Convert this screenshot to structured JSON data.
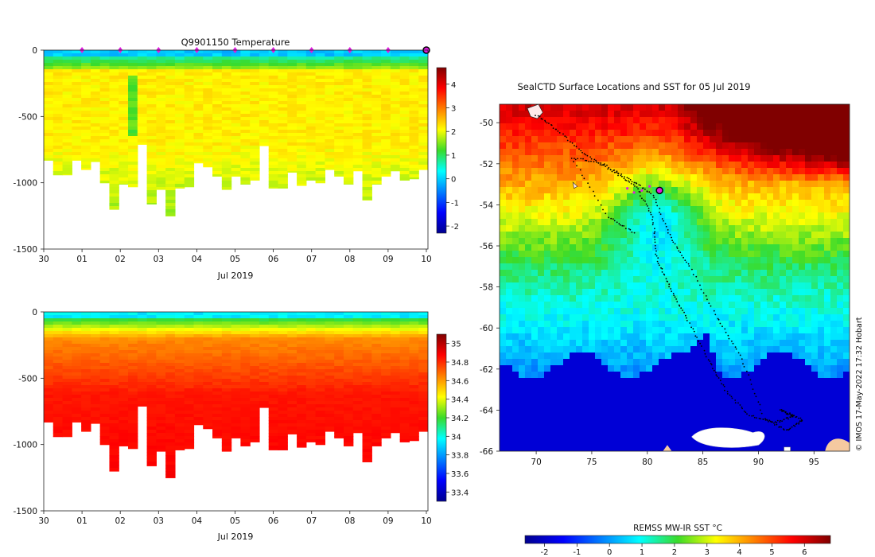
{
  "chart_data": [
    {
      "type": "heatmap",
      "title": "Q9901150  Temperature",
      "xlabel": "Jul 2019",
      "ylabel": "",
      "x_ticks": [
        "30",
        "01",
        "02",
        "03",
        "04",
        "05",
        "06",
        "07",
        "08",
        "09",
        "10"
      ],
      "y_ticks": [
        "0",
        "-500",
        "-1000",
        "-1500"
      ],
      "ylim": [
        -1500,
        0
      ],
      "colorbar_ticks": [
        "4",
        "3",
        "2",
        "1",
        "0",
        "-1",
        "-2"
      ],
      "colorbar_range": [
        -2.3,
        4.7
      ],
      "surface_profile_markers": 10,
      "profile_depths": [
        -830,
        -940,
        -940,
        -830,
        -900,
        -840,
        -1000,
        -1200,
        -1010,
        -1030,
        -710,
        -1160,
        -1050,
        -1250,
        -1040,
        -1030,
        -850,
        -880,
        -950,
        -1050,
        -950,
        -1010,
        -980,
        -720,
        -1040,
        -1040,
        -920,
        -1020,
        -980,
        -1000,
        -900,
        -950,
        -1010,
        -910,
        -1130,
        -1010,
        -950,
        -910,
        -980,
        -970,
        -900
      ]
    },
    {
      "type": "heatmap",
      "title": "",
      "xlabel": "Jul 2019",
      "ylabel": "",
      "x_ticks": [
        "30",
        "01",
        "02",
        "03",
        "04",
        "05",
        "06",
        "07",
        "08",
        "09",
        "10"
      ],
      "y_ticks": [
        "0",
        "-500",
        "-1000",
        "-1500"
      ],
      "ylim": [
        -1500,
        0
      ],
      "colorbar_ticks": [
        "35",
        "34.8",
        "34.6",
        "34.4",
        "34.2",
        "34",
        "33.8",
        "33.6",
        "33.4"
      ],
      "colorbar_range": [
        33.3,
        35.1
      ]
    },
    {
      "type": "heatmap",
      "title": "SealCTD Surface Locations and SST for 05 Jul 2019",
      "x_ticks": [
        "70",
        "75",
        "80",
        "85",
        "90",
        "95"
      ],
      "y_ticks": [
        "-50",
        "-52",
        "-54",
        "-56",
        "-58",
        "-60",
        "-62",
        "-64",
        "-66"
      ],
      "xlim": [
        66.7,
        98.2
      ],
      "ylim": [
        -66,
        -49.1
      ],
      "latest_position": {
        "lon": 81.1,
        "lat": -53.3
      },
      "colorbar_label": "REMSS MW-IR SST °C",
      "colorbar_ticks": [
        "-2",
        "-1",
        "0",
        "1",
        "2",
        "3",
        "4",
        "5",
        "6"
      ],
      "colorbar_range": [
        -2.6,
        6.8
      ]
    }
  ],
  "credit": "© IMOS 17-May-2022 17:32 Hobart",
  "colors": {
    "marker": "#e01ae0",
    "background_blank": "#ffffff",
    "land": "#f5c9a0",
    "ice": "#ffffff"
  }
}
